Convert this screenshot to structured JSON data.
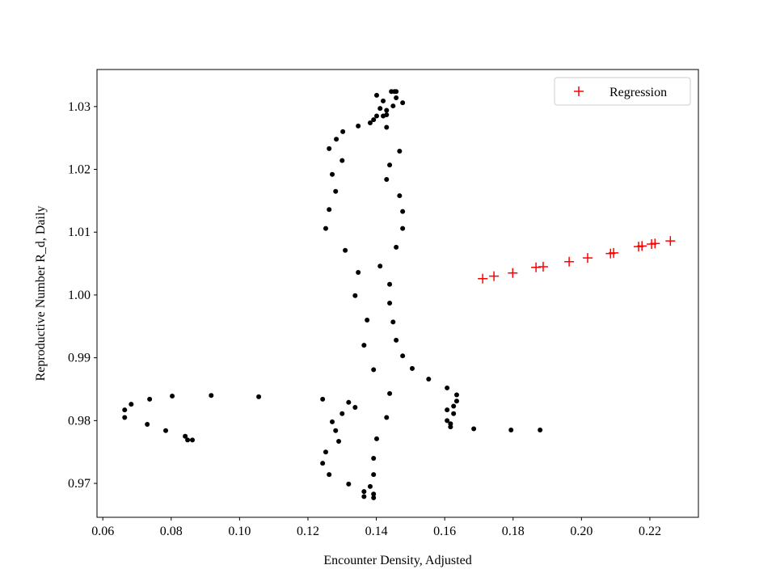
{
  "chart_data": {
    "type": "scatter",
    "xlabel": "Encounter Density, Adjusted",
    "ylabel": "Reproductive Number R_d, Daily",
    "xlim": [
      0.0583,
      0.2342
    ],
    "ylim": [
      0.9646,
      1.0359
    ],
    "xticks": [
      0.06,
      0.08,
      {
        "value": 0.1,
        "label": "0.10"
      },
      0.12,
      0.14,
      0.16,
      0.18,
      {
        "value": 0.2,
        "label": "0.20"
      },
      0.22
    ],
    "yticks": [
      0.97,
      0.98,
      0.99,
      {
        "value": 1.0,
        "label": "1.00"
      },
      1.01,
      1.02,
      1.03
    ],
    "legend": "upper right",
    "series": [
      {
        "color": "#000000",
        "marker": "dot",
        "x": [
          0.1401,
          0.1444,
          0.1453,
          0.1458,
          0.142,
          0.1458,
          0.1477,
          0.1411,
          0.1449,
          0.143,
          0.1401,
          0.142,
          0.1392,
          0.1382,
          0.1347,
          0.143,
          0.1302,
          0.1283,
          0.1262,
          0.143,
          0.1468,
          0.13,
          0.1439,
          0.1271,
          0.143,
          0.1281,
          0.1468,
          0.1262,
          0.1477,
          0.1252,
          0.1477,
          0.1458,
          0.1309,
          0.1411,
          0.1347,
          0.1439,
          0.1338,
          0.1439,
          0.1373,
          0.1449,
          0.1364,
          0.1458,
          0.1477,
          0.1392,
          0.1505,
          0.1553,
          0.1439,
          0.1607,
          0.1635,
          0.1635,
          0.1626,
          0.1243,
          0.1319,
          0.1338,
          0.1607,
          0.13,
          0.1626,
          0.143,
          0.1271,
          0.1607,
          0.1617,
          0.1617,
          0.1685,
          0.1281,
          0.129,
          0.1794,
          0.1879,
          0.1401,
          0.1252,
          0.1392,
          0.1243,
          0.1262,
          0.1319,
          0.1382,
          0.1364,
          0.1364,
          0.1392,
          0.1392,
          0.1392,
          0.0664,
          0.0683,
          0.0737,
          0.0803,
          0.0917,
          0.1056,
          0.0664,
          0.073,
          0.0784,
          0.0841,
          0.0848,
          0.0862
        ],
        "values": [
          1.0318,
          1.0324,
          1.0324,
          1.0324,
          1.0309,
          1.0314,
          1.0306,
          1.0297,
          1.0301,
          1.0294,
          1.0285,
          1.0285,
          1.0279,
          1.0274,
          1.0269,
          1.0287,
          1.026,
          1.0248,
          1.0233,
          1.0267,
          1.0229,
          1.0214,
          1.0207,
          1.0192,
          1.0184,
          1.0165,
          1.0158,
          1.0136,
          1.0133,
          1.0106,
          1.0106,
          1.0076,
          1.0071,
          1.0046,
          1.0036,
          1.0017,
          0.9999,
          0.9987,
          0.996,
          0.9957,
          0.992,
          0.9928,
          0.9903,
          0.9881,
          0.9883,
          0.9866,
          0.9843,
          0.9852,
          0.9841,
          0.9831,
          0.9823,
          0.9834,
          0.9829,
          0.9821,
          0.9817,
          0.9811,
          0.9811,
          0.9805,
          0.9798,
          0.98,
          0.9795,
          0.979,
          0.9787,
          0.9784,
          0.9767,
          0.9785,
          0.9785,
          0.9771,
          0.975,
          0.974,
          0.9732,
          0.9714,
          0.9699,
          0.9695,
          0.9687,
          0.9679,
          0.9683,
          0.9677,
          0.9714,
          0.9817,
          0.9826,
          0.9834,
          0.9839,
          0.984,
          0.9838,
          0.9805,
          0.9794,
          0.9784,
          0.9775,
          0.9769,
          0.9769
        ]
      },
      {
        "name": "Regression",
        "color": "#ff0000",
        "marker": "plus",
        "x": [
          0.1711,
          0.1744,
          0.1799,
          0.1867,
          0.1888,
          0.1964,
          0.2018,
          0.2085,
          0.2094,
          0.2167,
          0.2177,
          0.2205,
          0.2215,
          0.226
        ],
        "values": [
          1.0026,
          1.003,
          1.0035,
          1.0044,
          1.0045,
          1.0053,
          1.0059,
          1.0066,
          1.0067,
          1.0077,
          1.0078,
          1.0081,
          1.0082,
          1.0086
        ]
      }
    ]
  }
}
